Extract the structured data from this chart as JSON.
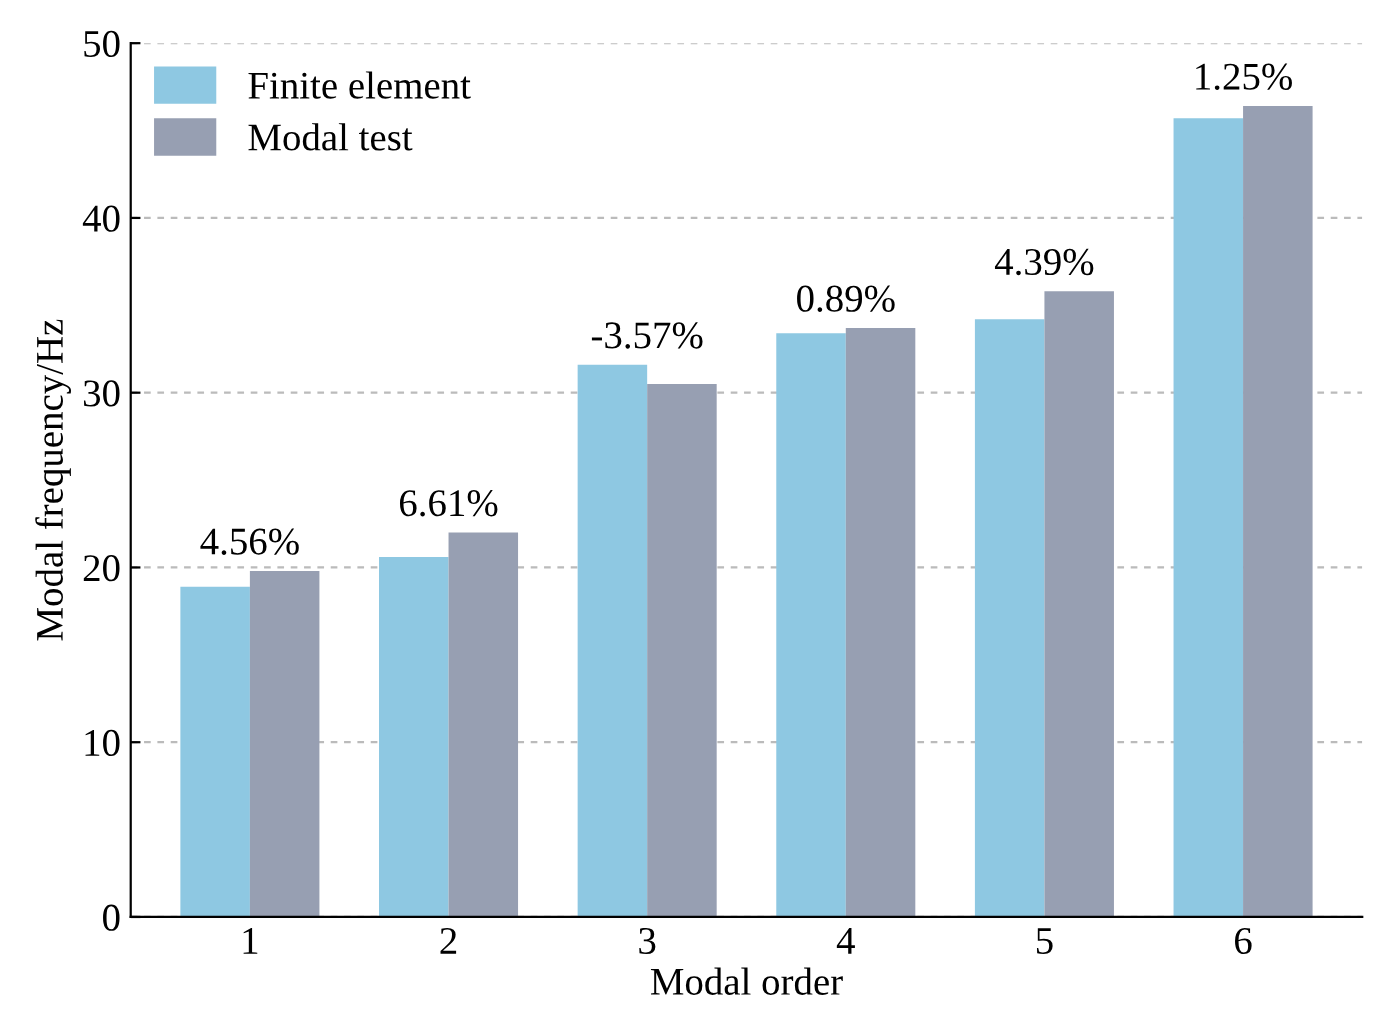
{
  "chart_data": {
    "type": "bar",
    "xlabel": "Modal order",
    "ylabel": "Modal frequency/Hz",
    "categories": [
      "1",
      "2",
      "3",
      "4",
      "5",
      "6"
    ],
    "series": [
      {
        "name": "Finite element",
        "color": "#8ec8e2",
        "values": [
          18.9,
          20.6,
          31.6,
          33.4,
          34.2,
          45.7
        ]
      },
      {
        "name": "Modal test",
        "color": "#979fb2",
        "values": [
          19.8,
          22.0,
          30.5,
          33.7,
          35.8,
          46.4
        ]
      }
    ],
    "ylim": [
      0,
      50
    ],
    "yticks": [
      0,
      10,
      20,
      30,
      40,
      50
    ],
    "grid": "y",
    "legend": "top left",
    "annotations": [
      {
        "text": "4.56%",
        "x": "1",
        "y": 19.8
      },
      {
        "text": "6.61%",
        "x": "2",
        "y": 22.0
      },
      {
        "text": "-3.57%",
        "x": "3",
        "y": 31.6
      },
      {
        "text": "0.89%",
        "x": "4",
        "y": 33.7
      },
      {
        "text": "4.39%",
        "x": "5",
        "y": 35.8
      },
      {
        "text": "1.25%",
        "x": "6",
        "y": 46.4
      }
    ]
  }
}
